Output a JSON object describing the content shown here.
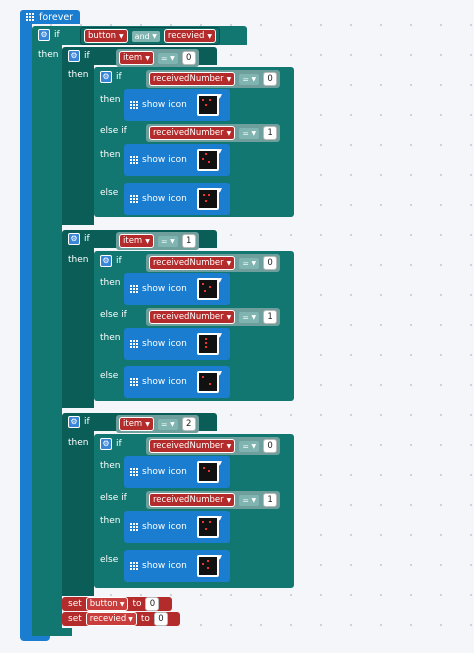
{
  "forever_label": "forever",
  "kw": {
    "if": "if",
    "then": "then",
    "else_if": "else if",
    "else": "else",
    "and": "and",
    "to": "to",
    "show_icon": "show icon",
    "set": "set"
  },
  "vars": {
    "button": "button",
    "recevied": "recevied",
    "item": "item",
    "receivedNumber": "receivedNumber"
  },
  "op_eq": "=",
  "values": {
    "v0": "0",
    "v1": "1",
    "v2": "2"
  },
  "colors": {
    "forever": "#1a7dd0",
    "logic": "#117770",
    "variable": "#b42b2b",
    "show": "#1a7dd0"
  }
}
